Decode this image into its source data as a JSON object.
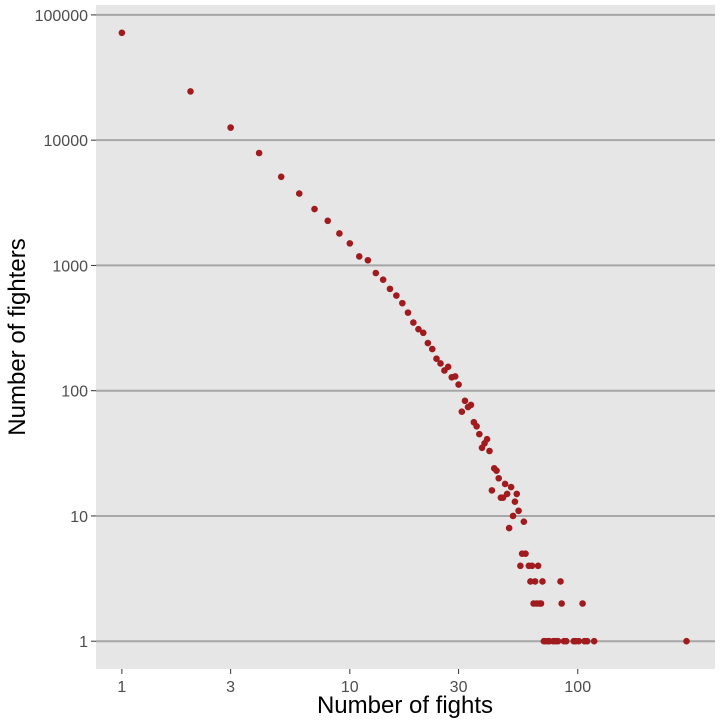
{
  "chart_data": {
    "type": "scatter",
    "title": "",
    "xlabel": "Number of fights",
    "ylabel": "Number of fighters",
    "x_scale": "log10",
    "y_scale": "log10",
    "xlim": [
      0.77,
      400
    ],
    "ylim": [
      0.6,
      120000
    ],
    "x_ticks": [
      {
        "value": 1,
        "label": "1"
      },
      {
        "value": 3,
        "label": "3"
      },
      {
        "value": 10,
        "label": "10"
      },
      {
        "value": 30,
        "label": "30"
      },
      {
        "value": 100,
        "label": "100"
      }
    ],
    "y_ticks": [
      {
        "value": 1,
        "label": "1"
      },
      {
        "value": 10,
        "label": "10"
      },
      {
        "value": 100,
        "label": "100"
      },
      {
        "value": 1000,
        "label": "1000"
      },
      {
        "value": 10000,
        "label": "10000"
      },
      {
        "value": 100000,
        "label": "100000"
      }
    ],
    "grid": "horizontal major lines only",
    "point_color": "#a11a1d",
    "panel_color": "#e6e6e6",
    "grid_color": "#a6a6a6",
    "points": [
      [
        1,
        72000
      ],
      [
        2,
        24500
      ],
      [
        3,
        12600
      ],
      [
        4,
        7900
      ],
      [
        5,
        5100
      ],
      [
        6,
        3750
      ],
      [
        7,
        2820
      ],
      [
        8,
        2270
      ],
      [
        9,
        1800
      ],
      [
        10,
        1500
      ],
      [
        11,
        1180
      ],
      [
        12,
        1100
      ],
      [
        13,
        870
      ],
      [
        14,
        770
      ],
      [
        15,
        650
      ],
      [
        16,
        575
      ],
      [
        17,
        500
      ],
      [
        18,
        420
      ],
      [
        19,
        350
      ],
      [
        20,
        310
      ],
      [
        21,
        290
      ],
      [
        22,
        240
      ],
      [
        23,
        215
      ],
      [
        24,
        180
      ],
      [
        25,
        165
      ],
      [
        26,
        145
      ],
      [
        27,
        155
      ],
      [
        28,
        128
      ],
      [
        29,
        130
      ],
      [
        30,
        112
      ],
      [
        31,
        68
      ],
      [
        32,
        83
      ],
      [
        33,
        74
      ],
      [
        34,
        77
      ],
      [
        35,
        56
      ],
      [
        36,
        52
      ],
      [
        37,
        45
      ],
      [
        38,
        35
      ],
      [
        39,
        38
      ],
      [
        40,
        41
      ],
      [
        41,
        33
      ],
      [
        42,
        16
      ],
      [
        43,
        24
      ],
      [
        44,
        23
      ],
      [
        45,
        20
      ],
      [
        46,
        14
      ],
      [
        47,
        14
      ],
      [
        48,
        18
      ],
      [
        49,
        15
      ],
      [
        50,
        8
      ],
      [
        51,
        17
      ],
      [
        52,
        10
      ],
      [
        53,
        13
      ],
      [
        54,
        15
      ],
      [
        55,
        11
      ],
      [
        56,
        4
      ],
      [
        57,
        5
      ],
      [
        58,
        9
      ],
      [
        59,
        5
      ],
      [
        61,
        4
      ],
      [
        62,
        3
      ],
      [
        63,
        4
      ],
      [
        64,
        2
      ],
      [
        65,
        3
      ],
      [
        66,
        2
      ],
      [
        67,
        4
      ],
      [
        68,
        2
      ],
      [
        69,
        2
      ],
      [
        70,
        3
      ],
      [
        71,
        1
      ],
      [
        72,
        1
      ],
      [
        74,
        1
      ],
      [
        75,
        1
      ],
      [
        78,
        1
      ],
      [
        80,
        1
      ],
      [
        82,
        1
      ],
      [
        84,
        3
      ],
      [
        85,
        2
      ],
      [
        87,
        1
      ],
      [
        89,
        1
      ],
      [
        96,
        1
      ],
      [
        98,
        1
      ],
      [
        101,
        1
      ],
      [
        105,
        2
      ],
      [
        107,
        1
      ],
      [
        110,
        1
      ],
      [
        118,
        1
      ],
      [
        300,
        1
      ]
    ]
  }
}
